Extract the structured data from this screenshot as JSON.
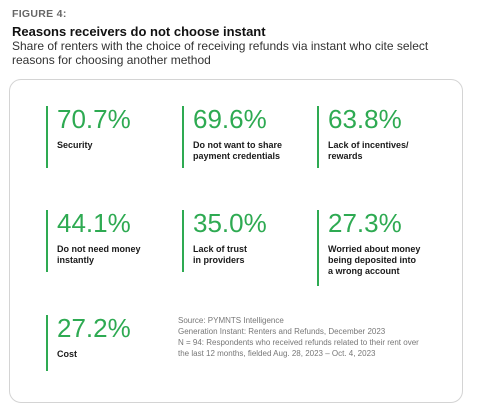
{
  "figure_label": "FIGURE 4:",
  "title": "Reasons receivers do not choose instant",
  "subtitle": "Share of renters with the choice of receiving refunds via instant who cite select reasons for choosing another method",
  "chart_data": {
    "type": "table",
    "title": "Reasons receivers do not choose instant",
    "subtitle": "Share of renters with the choice of receiving refunds via instant who cite select reasons for choosing another method",
    "unit": "%",
    "categories": [
      "Security",
      "Do not want to share payment credentials",
      "Lack of incentives/ rewards",
      "Do not need money instantly",
      "Lack of trust in providers",
      "Worried about money being deposited into a wrong account",
      "Cost"
    ],
    "values": [
      70.7,
      69.6,
      63.8,
      44.1,
      35.0,
      27.3,
      27.2
    ]
  },
  "stats": [
    {
      "value": "70.7%",
      "label": "Security"
    },
    {
      "value": "69.6%",
      "label": "Do not want to share\npayment credentials"
    },
    {
      "value": "63.8%",
      "label": "Lack of incentives/\nrewards"
    },
    {
      "value": "44.1%",
      "label": "Do not need money\ninstantly"
    },
    {
      "value": "35.0%",
      "label": "Lack of trust\nin providers"
    },
    {
      "value": "27.3%",
      "label": "Worried about money\nbeing deposited into\na wrong account"
    },
    {
      "value": "27.2%",
      "label": "Cost"
    }
  ],
  "source": {
    "line1": "Source: PYMNTS Intelligence",
    "line2": "Generation Instant: Renters and Refunds, December 2023",
    "line3": "N = 94: Respondents who received refunds related to their rent over the last 12 months, fielded Aug. 28, 2023 – Oct. 4, 2023"
  },
  "colors": {
    "accent": "#2eaa52",
    "border": "#d4d4d4"
  }
}
